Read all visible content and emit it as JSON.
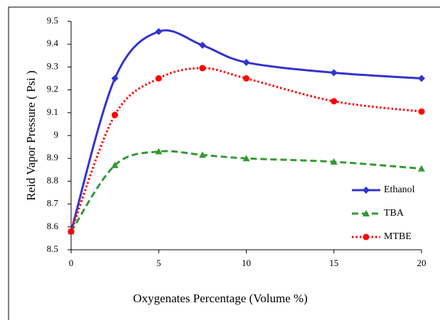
{
  "chart_data": {
    "type": "line",
    "xlabel": "Oxygenates Percentage (Volume %)",
    "ylabel": "Reid Vapor Pressure ( Psi )",
    "x": [
      0,
      2.5,
      5,
      7.5,
      10,
      15,
      20
    ],
    "series": [
      {
        "name": "Ethanol",
        "color": "#3333cc",
        "marker": "diamond",
        "dash": "solid",
        "values": [
          8.58,
          9.25,
          9.455,
          9.395,
          9.32,
          9.275,
          9.25
        ]
      },
      {
        "name": "TBA",
        "color": "#339933",
        "marker": "triangle",
        "dash": "dashed",
        "values": [
          8.58,
          8.87,
          8.93,
          8.915,
          8.9,
          8.885,
          8.855
        ]
      },
      {
        "name": "MTBE",
        "color": "#ff0000",
        "marker": "circle",
        "dash": "dotted",
        "values": [
          8.58,
          9.09,
          9.25,
          9.295,
          9.25,
          9.15,
          9.105
        ]
      }
    ],
    "xlim": [
      0,
      20
    ],
    "xticks": [
      0,
      5,
      10,
      15,
      20
    ],
    "ylim": [
      8.5,
      9.5
    ],
    "yticks": [
      8.5,
      8.6,
      8.7,
      8.8,
      8.9,
      9,
      9.1,
      9.2,
      9.3,
      9.4,
      9.5
    ],
    "legend": "right"
  }
}
